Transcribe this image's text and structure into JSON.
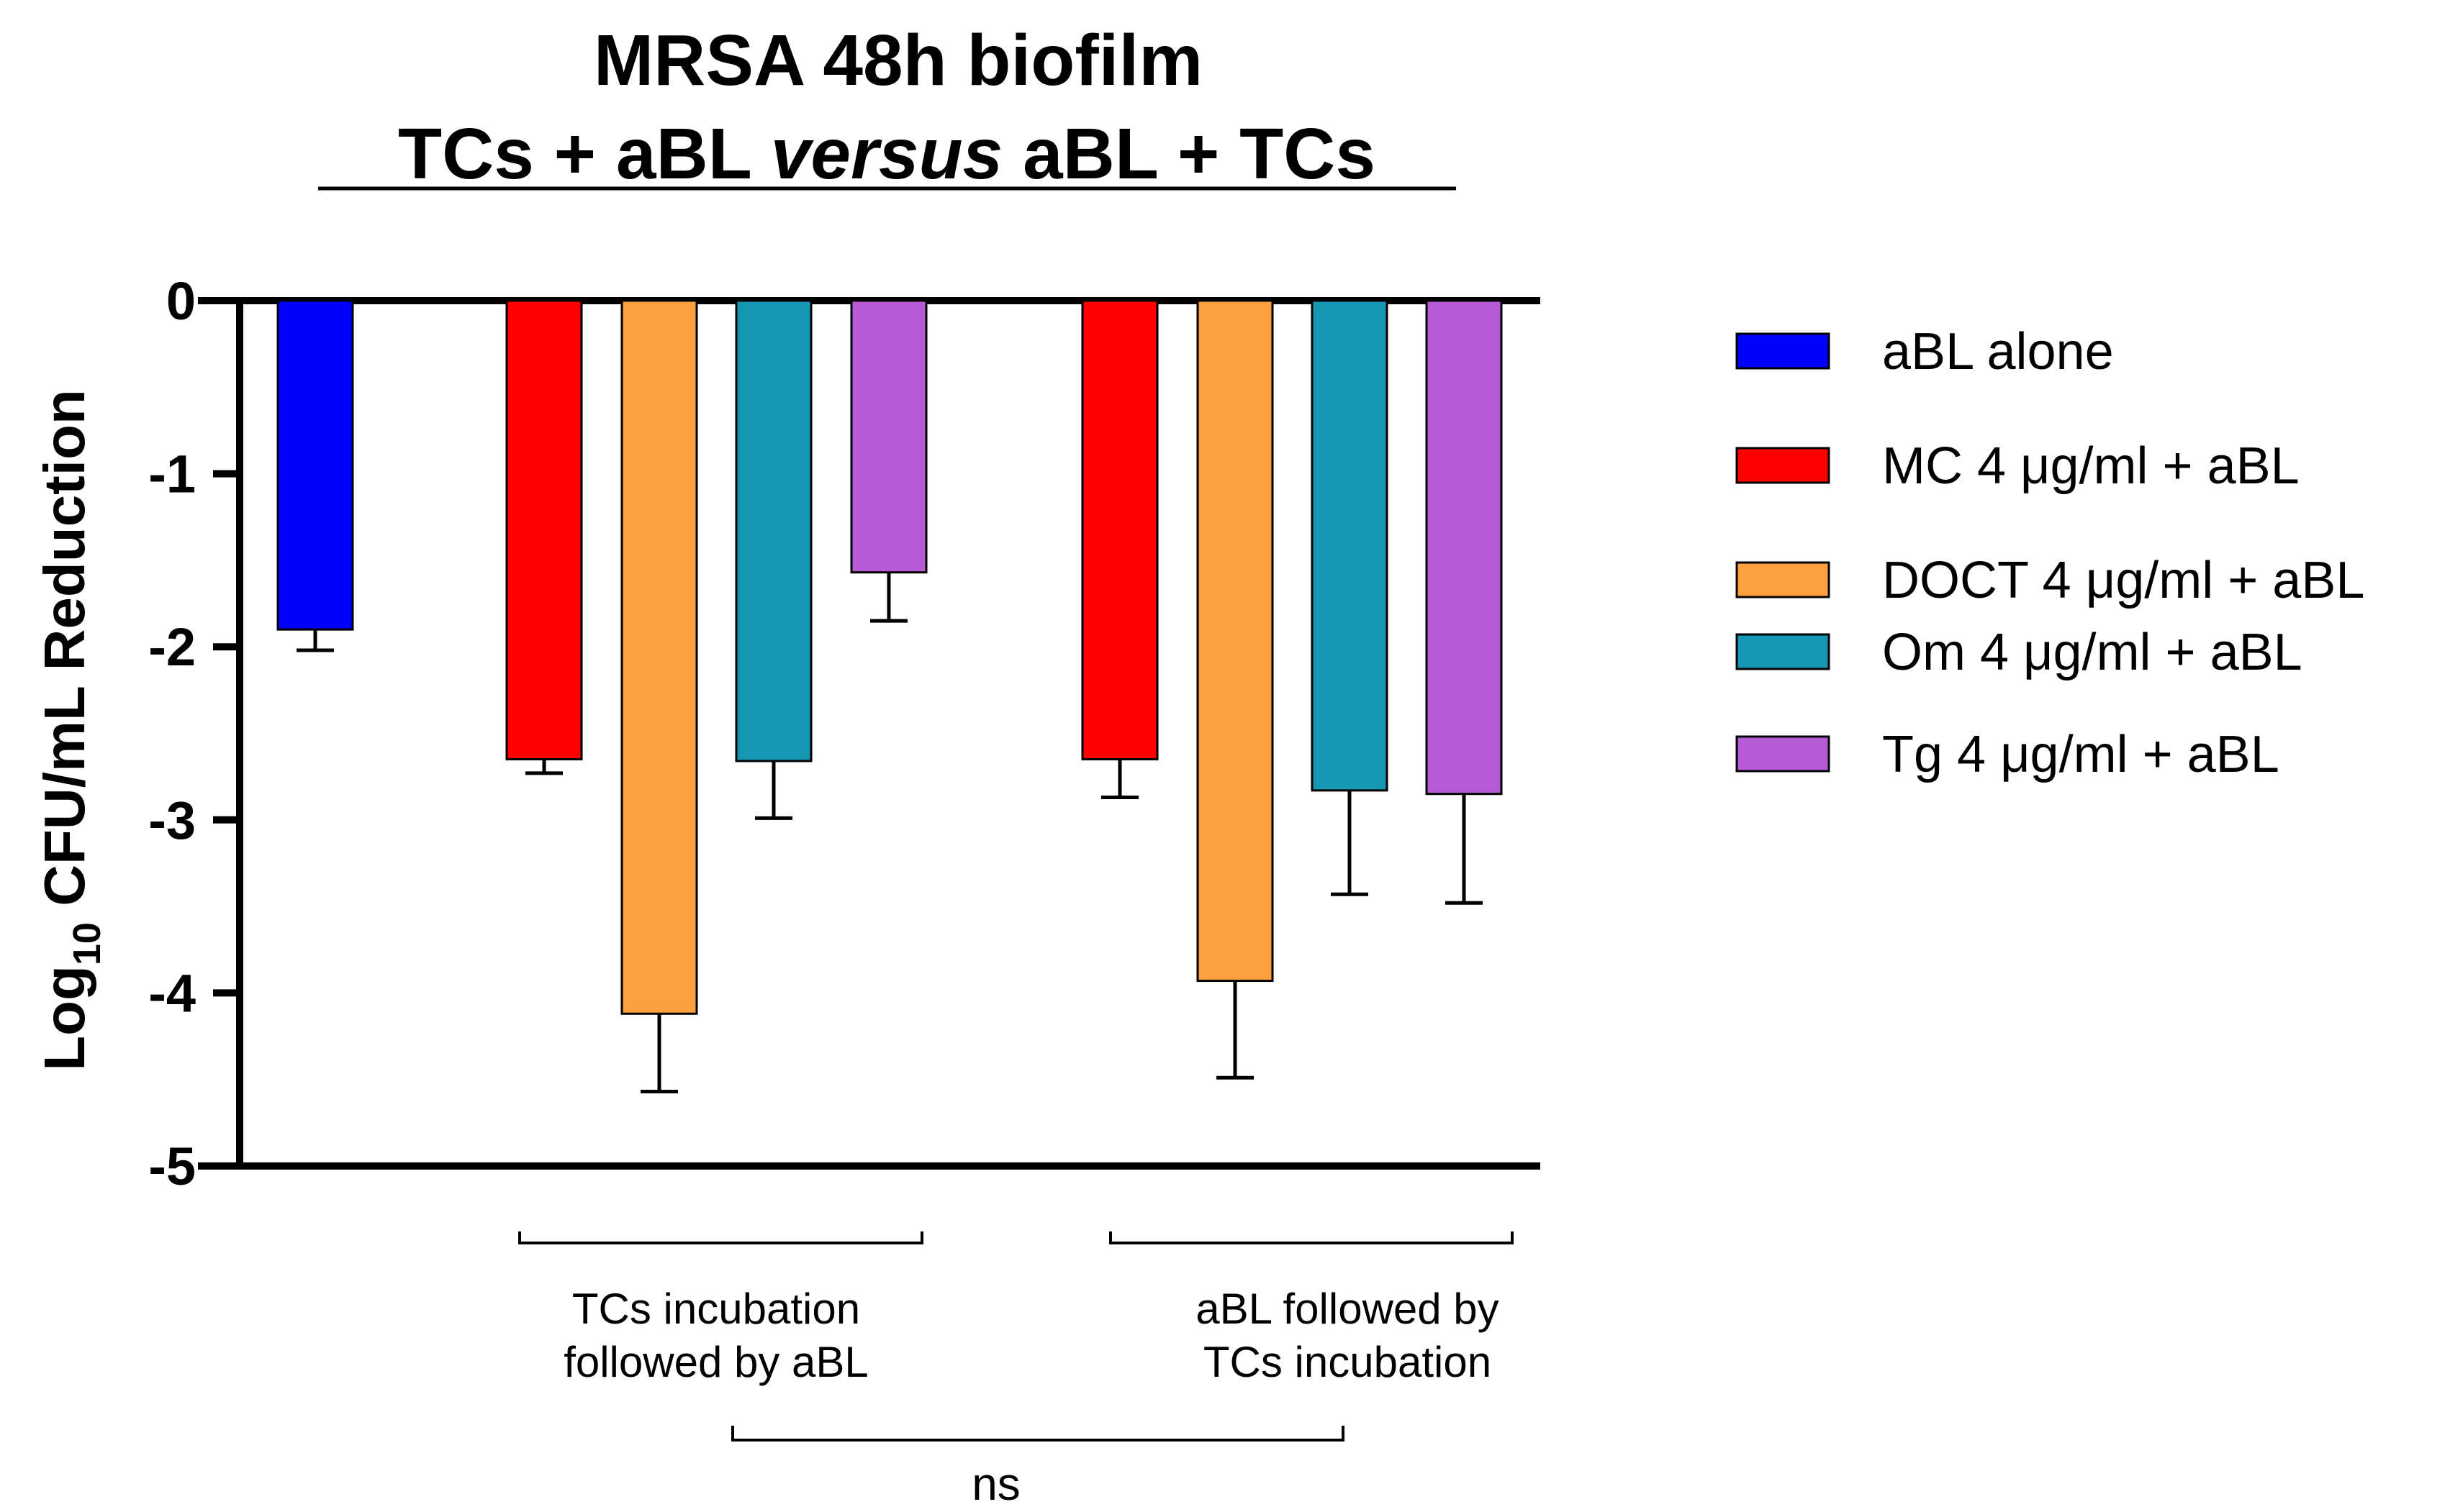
{
  "chart_data": {
    "type": "bar",
    "title_line1": "MRSA 48h biofilm",
    "title_line2": {
      "part1": "TCs + aBL ",
      "part2_italic": "versus",
      "part3": " aBL + TCs"
    },
    "ylabel": {
      "prefix": "Log",
      "subscript": "10",
      "suffix": " CFU/mL Reduction"
    },
    "xlabel": "",
    "ylim": [
      -5,
      0
    ],
    "yticks": [
      0,
      -1,
      -2,
      -3,
      -4,
      -5
    ],
    "ytick_labels": [
      "0",
      "-1",
      "-2",
      "-3",
      "-4",
      "-5"
    ],
    "legend_position": "right",
    "series": [
      {
        "name": "aBL alone",
        "color": "#0000ff"
      },
      {
        "name": "MC 4 μg/ml + aBL",
        "color": "#ff0000"
      },
      {
        "name": "DOCT 4 μg/ml + aBL",
        "color": "#ffa040"
      },
      {
        "name": "Om 4 μg/ml + aBL",
        "color": "#1497b2"
      },
      {
        "name": "Tg 4 μg/ml + aBL",
        "color": "#b65bd6"
      }
    ],
    "bars": [
      {
        "series": 0,
        "value": -1.9,
        "error": 0.12
      },
      {
        "series": 1,
        "value": -2.65,
        "error": 0.08
      },
      {
        "series": 2,
        "value": -4.12,
        "error": 0.45
      },
      {
        "series": 3,
        "value": -2.66,
        "error": 0.33
      },
      {
        "series": 4,
        "value": -1.57,
        "error": 0.28
      },
      {
        "series": 1,
        "value": -2.65,
        "error": 0.22
      },
      {
        "series": 2,
        "value": -3.93,
        "error": 0.56
      },
      {
        "series": 3,
        "value": -2.83,
        "error": 0.6
      },
      {
        "series": 4,
        "value": -2.85,
        "error": 0.63
      }
    ],
    "groups": [
      {
        "label_line1": "TCs incubation",
        "label_line2": "followed by aBL"
      },
      {
        "label_line1": "aBL followed by",
        "label_line2": "TCs incubation"
      }
    ],
    "comparison_label": "ns"
  }
}
